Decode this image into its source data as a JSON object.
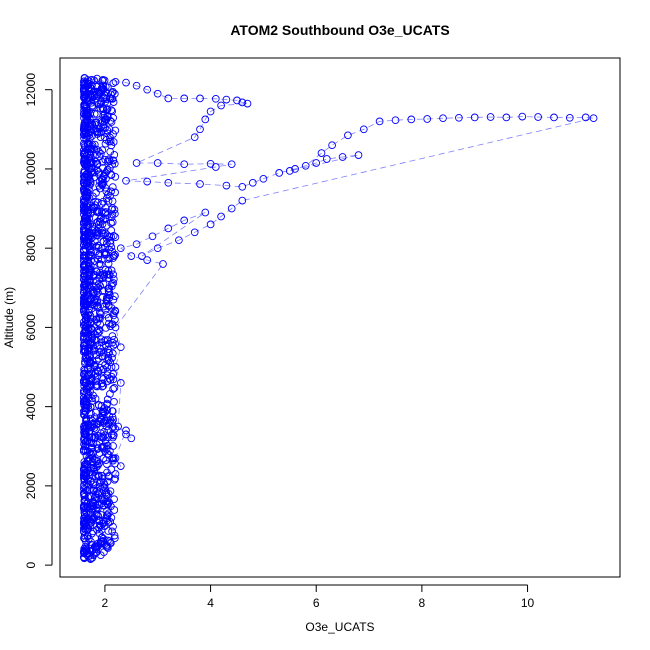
{
  "chart_data": {
    "type": "scatter",
    "title": "ATOM2 Southbound O3e_UCATS",
    "xlabel": "O3e_UCATS",
    "ylabel": "Altitude (m)",
    "xlim": [
      1.15,
      11.75
    ],
    "ylim": [
      -300,
      12800
    ],
    "x_ticks": [
      2,
      4,
      6,
      8,
      10
    ],
    "y_ticks": [
      0,
      2000,
      4000,
      6000,
      8000,
      10000,
      12000
    ],
    "x_tick_labels": [
      "2",
      "4",
      "6",
      "8",
      "10"
    ],
    "y_tick_labels": [
      "0",
      "2000",
      "4000",
      "6000",
      "8000",
      "10000",
      "12000"
    ],
    "grid": false,
    "legend": "none",
    "marker": "open-circle",
    "color": "#0000ff",
    "dense_band": {
      "x_range": [
        1.55,
        2.15
      ],
      "y_range": [
        150,
        12300
      ]
    },
    "series": [
      {
        "points": [
          [
            1.75,
            12250
          ],
          [
            1.85,
            12280
          ],
          [
            1.95,
            12230
          ],
          [
            1.7,
            12150
          ],
          [
            2.2,
            12200
          ],
          [
            2.4,
            12180
          ],
          [
            2.6,
            12100
          ],
          [
            2.8,
            12000
          ],
          [
            3.0,
            11900
          ],
          [
            3.2,
            11780
          ],
          [
            3.5,
            11780
          ],
          [
            3.8,
            11780
          ],
          [
            4.1,
            11770
          ],
          [
            4.3,
            11750
          ],
          [
            4.5,
            11730
          ],
          [
            4.6,
            11680
          ],
          [
            4.7,
            11650
          ],
          [
            4.2,
            11600
          ],
          [
            4.0,
            11450
          ],
          [
            3.9,
            11250
          ],
          [
            3.8,
            11000
          ],
          [
            3.7,
            10800
          ],
          [
            2.6,
            10150
          ],
          [
            3.0,
            10150
          ],
          [
            3.5,
            10120
          ],
          [
            4.0,
            10130
          ],
          [
            4.4,
            10120
          ],
          [
            4.1,
            10050
          ],
          [
            2.4,
            9700
          ],
          [
            2.8,
            9680
          ],
          [
            3.2,
            9650
          ],
          [
            3.8,
            9620
          ],
          [
            4.3,
            9580
          ],
          [
            4.6,
            9550
          ],
          [
            4.8,
            9650
          ],
          [
            5.0,
            9750
          ],
          [
            5.3,
            9900
          ],
          [
            5.6,
            10000
          ],
          [
            6.0,
            10150
          ],
          [
            6.2,
            10250
          ],
          [
            6.5,
            10300
          ],
          [
            6.8,
            10350
          ],
          [
            5.5,
            9950
          ],
          [
            5.8,
            10080
          ],
          [
            6.1,
            10400
          ],
          [
            6.3,
            10600
          ],
          [
            6.6,
            10850
          ],
          [
            6.9,
            11000
          ],
          [
            7.2,
            11200
          ],
          [
            7.5,
            11230
          ],
          [
            7.8,
            11250
          ],
          [
            8.1,
            11260
          ],
          [
            8.4,
            11280
          ],
          [
            8.7,
            11290
          ],
          [
            9.0,
            11300
          ],
          [
            9.3,
            11310
          ],
          [
            9.6,
            11300
          ],
          [
            9.9,
            11320
          ],
          [
            10.2,
            11310
          ],
          [
            10.5,
            11300
          ],
          [
            10.8,
            11290
          ],
          [
            11.1,
            11300
          ],
          [
            11.25,
            11280
          ],
          [
            4.6,
            9200
          ],
          [
            4.4,
            9000
          ],
          [
            4.2,
            8800
          ],
          [
            4.0,
            8600
          ],
          [
            3.7,
            8400
          ],
          [
            3.4,
            8200
          ],
          [
            3.0,
            8000
          ],
          [
            2.7,
            7800
          ],
          [
            3.9,
            8900
          ],
          [
            3.5,
            8700
          ],
          [
            3.2,
            8500
          ],
          [
            2.9,
            8300
          ],
          [
            2.6,
            8100
          ],
          [
            2.3,
            8000
          ],
          [
            2.5,
            7800
          ],
          [
            2.8,
            7700
          ],
          [
            3.1,
            7600
          ],
          [
            2.2,
            6000
          ],
          [
            2.3,
            5500
          ],
          [
            2.2,
            5000
          ],
          [
            2.3,
            4600
          ],
          [
            2.25,
            3500
          ],
          [
            2.4,
            3300
          ],
          [
            2.5,
            3200
          ],
          [
            2.4,
            3400
          ],
          [
            2.2,
            2700
          ],
          [
            2.3,
            2500
          ],
          [
            2.2,
            2300
          ]
        ]
      }
    ]
  }
}
